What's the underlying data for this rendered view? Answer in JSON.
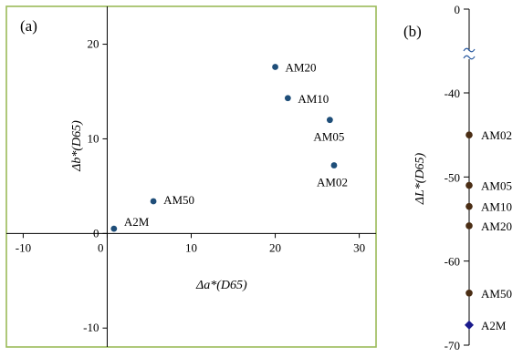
{
  "chart_data": [
    {
      "type": "scatter",
      "panel_label": "(a)",
      "xlabel": "Δa*(D65)",
      "ylabel": "Δb*(D65)",
      "xlim": [
        -12,
        32
      ],
      "ylim": [
        -12,
        24
      ],
      "xticks": [
        -10,
        0,
        10,
        20,
        30
      ],
      "yticks": [
        -10,
        0,
        10,
        20
      ],
      "frame_color": "#9bbb59",
      "point_color": "#1f4e79",
      "points": [
        {
          "label": "AM20",
          "x": 20.0,
          "y": 17.6
        },
        {
          "label": "AM10",
          "x": 21.5,
          "y": 14.3
        },
        {
          "label": "AM05",
          "x": 26.5,
          "y": 12.0
        },
        {
          "label": "AM02",
          "x": 27.0,
          "y": 7.2
        },
        {
          "label": "AM50",
          "x": 5.5,
          "y": 3.4
        },
        {
          "label": "A2M",
          "x": 0.8,
          "y": 0.5
        }
      ]
    },
    {
      "type": "scatter",
      "panel_label": "(b)",
      "ylabel": "ΔL*(D65)",
      "ylim": [
        -70,
        0
      ],
      "yticks": [
        0,
        -40,
        -50,
        -60,
        -70
      ],
      "axis_break": true,
      "points": [
        {
          "label": "AM02",
          "y": -45.0,
          "color": "#4a2d14",
          "marker": "circle"
        },
        {
          "label": "AM05",
          "y": -51.0,
          "color": "#4a2d14",
          "marker": "circle"
        },
        {
          "label": "AM10",
          "y": -53.5,
          "color": "#4a2d14",
          "marker": "circle"
        },
        {
          "label": "AM20",
          "y": -55.8,
          "color": "#4a2d14",
          "marker": "circle"
        },
        {
          "label": "AM50",
          "y": -63.8,
          "color": "#4a2d14",
          "marker": "circle"
        },
        {
          "label": "A2M",
          "y": -67.6,
          "color": "#1a1a8c",
          "marker": "diamond"
        }
      ]
    }
  ]
}
